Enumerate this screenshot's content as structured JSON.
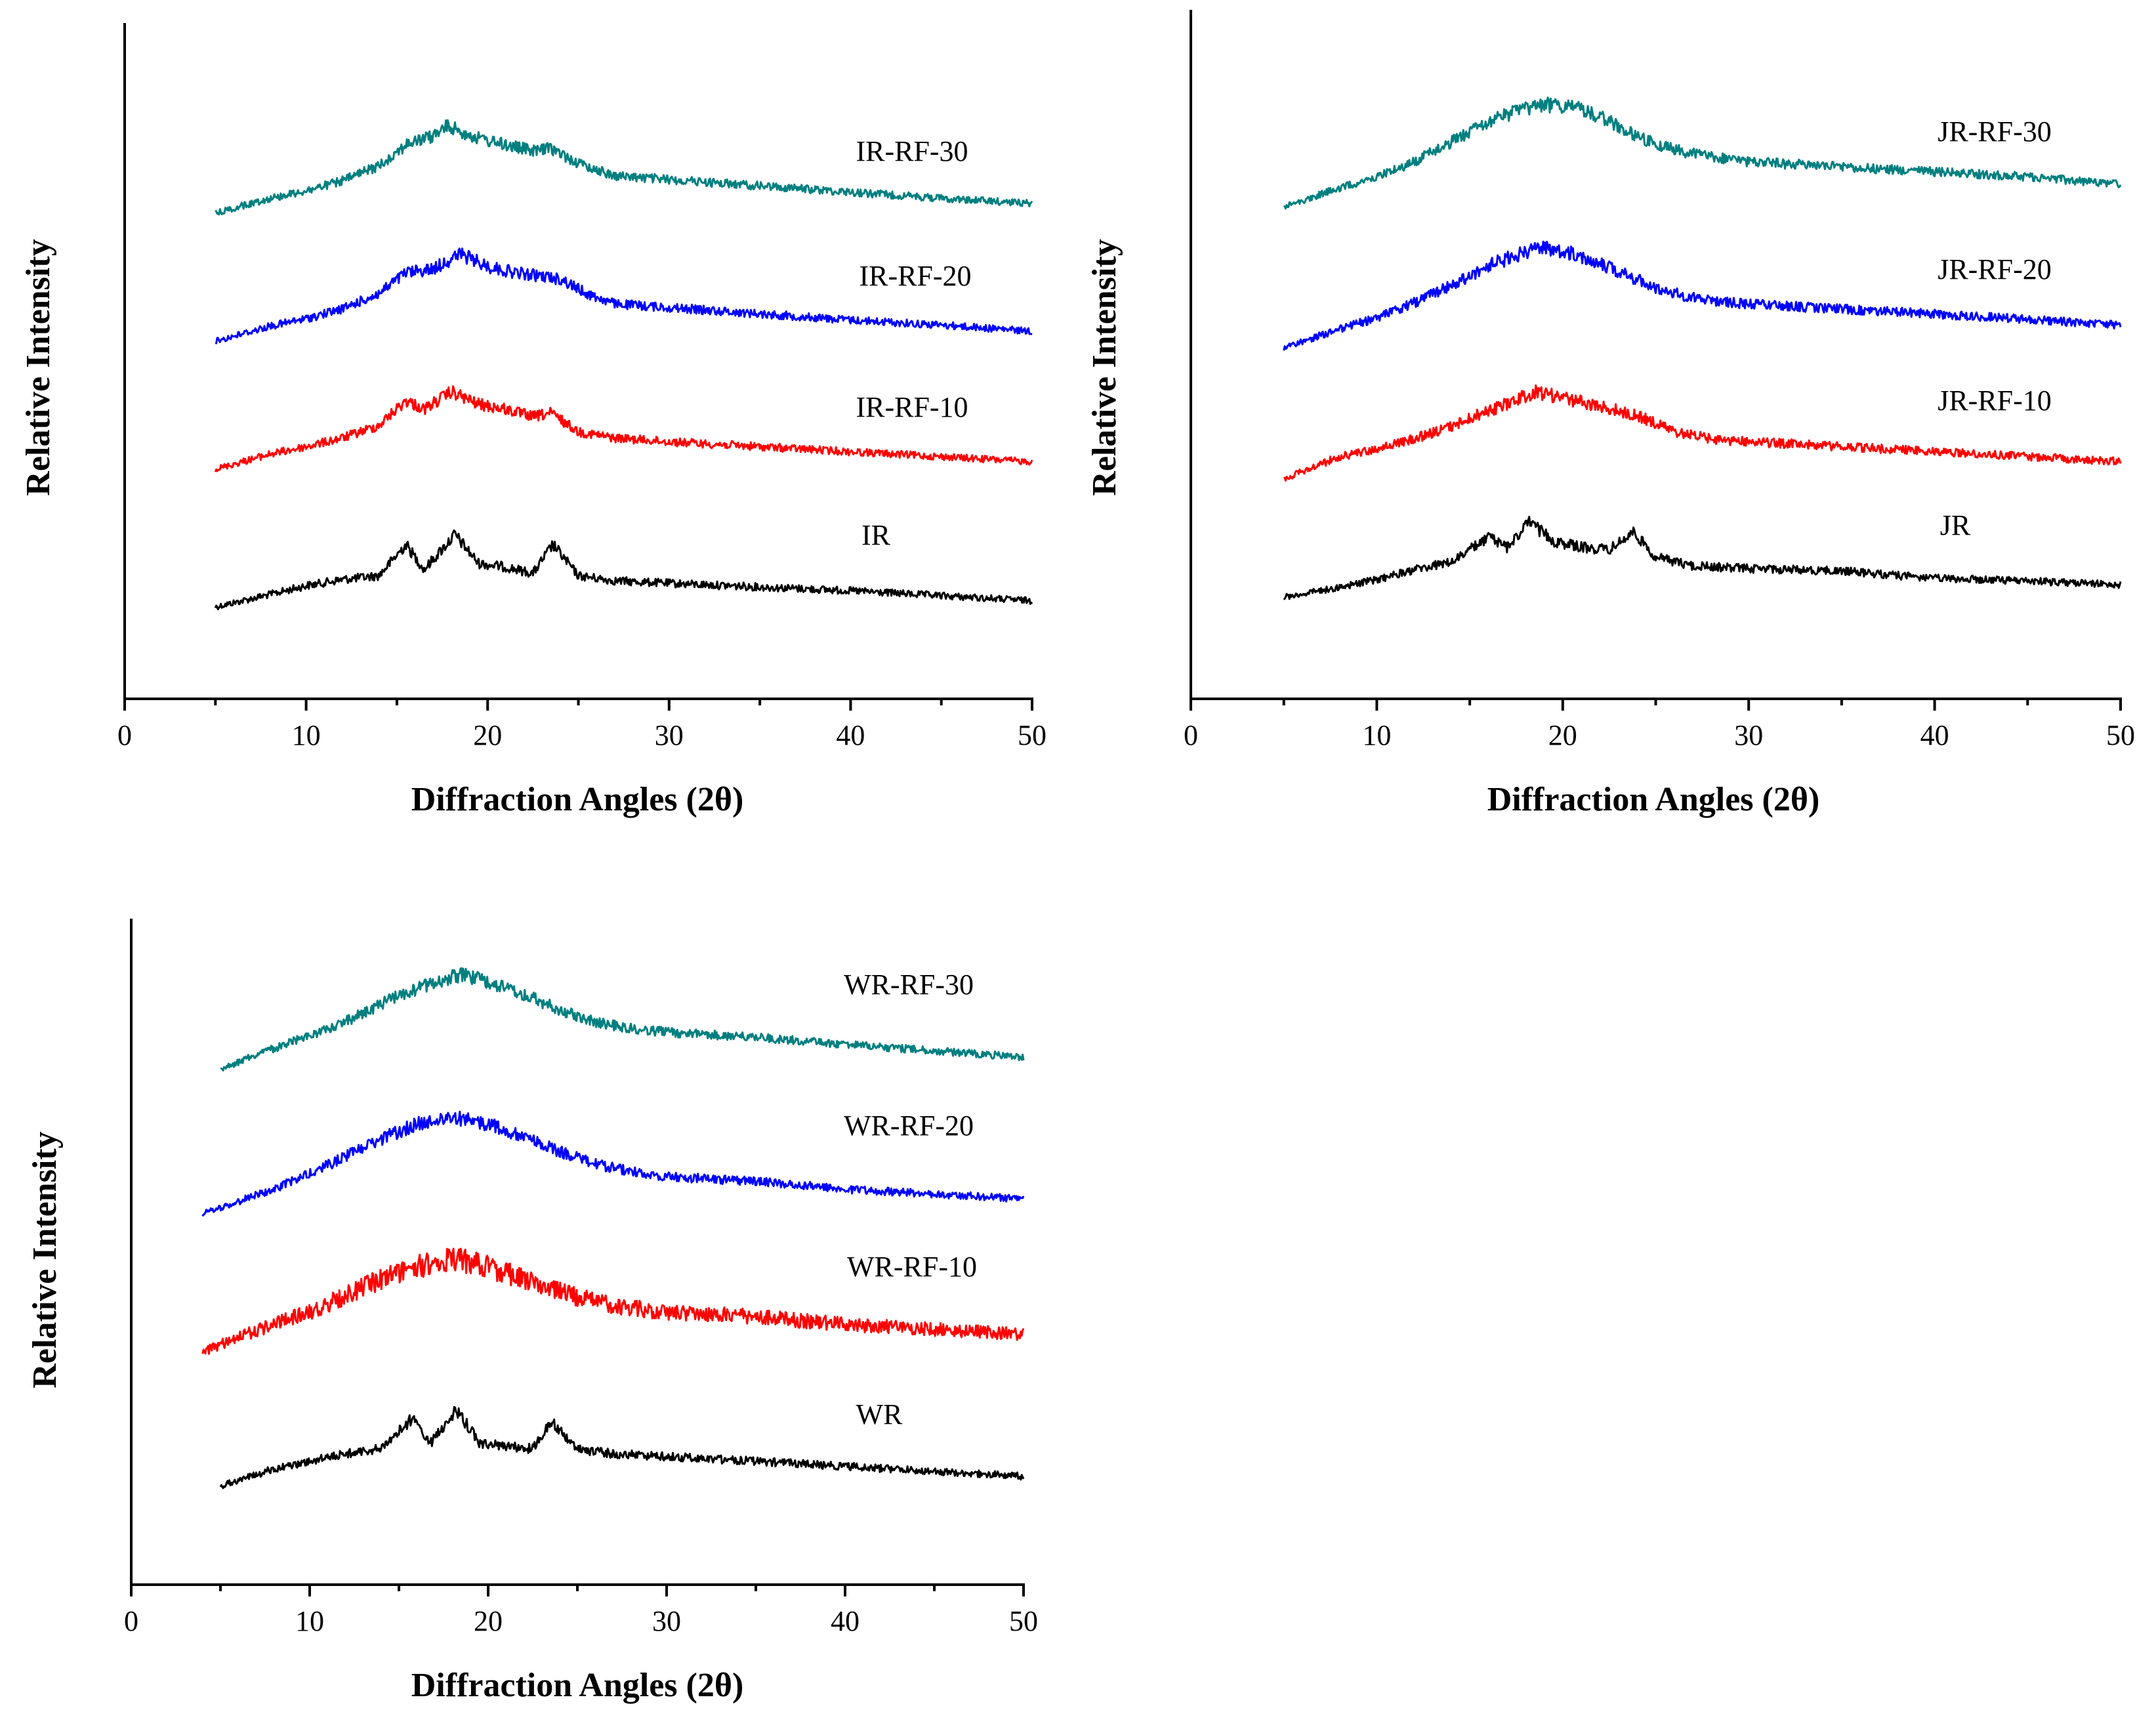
{
  "chart_data": [
    {
      "type": "line",
      "xlabel": "Diffraction Angles (2θ)",
      "ylabel": "Relative Intensity",
      "xlim": [
        0,
        50
      ],
      "xticks": [
        0,
        10,
        20,
        30,
        40,
        50
      ],
      "yticks": false,
      "grid": false,
      "legend": "inline labels",
      "series": [
        {
          "name": "IR",
          "color": "#000000",
          "x": [
            5,
            8,
            10,
            12,
            14,
            15.5,
            16.5,
            18.2,
            19.5,
            21,
            22.5,
            23.6,
            25,
            27,
            30,
            35,
            40,
            45,
            50
          ],
          "y": [
            0.0,
            0.1,
            0.17,
            0.22,
            0.25,
            0.5,
            0.3,
            0.58,
            0.35,
            0.32,
            0.27,
            0.5,
            0.25,
            0.21,
            0.19,
            0.16,
            0.13,
            0.09,
            0.05
          ]
        },
        {
          "name": "IR-RF-10",
          "color": "#ff0000",
          "x": [
            5,
            8,
            10,
            12,
            14,
            15.5,
            16.5,
            18,
            19.5,
            21,
            22.5,
            23.5,
            25,
            27,
            30,
            35,
            40,
            45,
            50
          ],
          "y": [
            0.0,
            0.12,
            0.18,
            0.25,
            0.35,
            0.55,
            0.48,
            0.62,
            0.52,
            0.48,
            0.42,
            0.45,
            0.3,
            0.25,
            0.22,
            0.18,
            0.14,
            0.1,
            0.06
          ]
        },
        {
          "name": "IR-RF-20",
          "color": "#0000ff",
          "x": [
            5,
            8,
            10,
            12,
            14,
            15.5,
            17,
            18.5,
            20,
            21.5,
            23,
            24,
            25.5,
            27,
            30,
            35,
            40,
            45,
            50
          ],
          "y": [
            0.0,
            0.12,
            0.18,
            0.26,
            0.38,
            0.55,
            0.58,
            0.7,
            0.6,
            0.55,
            0.52,
            0.5,
            0.38,
            0.3,
            0.27,
            0.22,
            0.17,
            0.13,
            0.08
          ]
        },
        {
          "name": "IR-RF-30",
          "color": "#007f7f",
          "x": [
            5,
            8,
            10,
            12,
            14,
            15.5,
            17,
            17.8,
            19.5,
            21,
            22.5,
            23.5,
            25,
            27,
            30,
            35,
            40,
            45,
            50
          ],
          "y": [
            0.0,
            0.12,
            0.18,
            0.26,
            0.38,
            0.55,
            0.62,
            0.7,
            0.6,
            0.55,
            0.5,
            0.52,
            0.4,
            0.3,
            0.27,
            0.22,
            0.17,
            0.12,
            0.08
          ]
        }
      ]
    },
    {
      "type": "line",
      "xlabel": "Diffraction Angles (2θ)",
      "ylabel": "Relative Intensity",
      "xlim": [
        0,
        50
      ],
      "xticks": [
        0,
        10,
        20,
        30,
        40,
        50
      ],
      "yticks": false,
      "grid": false,
      "legend": "inline labels",
      "series": [
        {
          "name": "JR",
          "color": "#000000",
          "x": [
            5,
            8,
            10,
            12,
            14,
            16,
            17,
            18.2,
            19.5,
            21,
            22.5,
            23.8,
            25,
            27,
            30,
            35,
            40,
            45,
            50
          ],
          "y": [
            0.0,
            0.08,
            0.14,
            0.22,
            0.28,
            0.48,
            0.4,
            0.6,
            0.45,
            0.4,
            0.38,
            0.52,
            0.32,
            0.25,
            0.23,
            0.21,
            0.15,
            0.13,
            0.1
          ]
        },
        {
          "name": "JR-RF-10",
          "color": "#ff0000",
          "x": [
            5,
            8,
            10,
            12,
            14,
            16,
            17,
            18.5,
            20,
            21.5,
            23,
            24.5,
            26,
            28,
            30,
            35,
            40,
            45,
            50
          ],
          "y": [
            0.0,
            0.18,
            0.24,
            0.32,
            0.42,
            0.55,
            0.6,
            0.7,
            0.65,
            0.6,
            0.55,
            0.48,
            0.38,
            0.32,
            0.3,
            0.26,
            0.22,
            0.18,
            0.14
          ]
        },
        {
          "name": "JR-RF-20",
          "color": "#0000ff",
          "x": [
            5,
            8,
            10,
            12,
            14,
            16,
            17.5,
            19,
            20.5,
            22,
            23.5,
            25,
            26.5,
            28,
            30,
            35,
            40,
            45,
            50
          ],
          "y": [
            0.0,
            0.15,
            0.24,
            0.36,
            0.5,
            0.66,
            0.74,
            0.8,
            0.76,
            0.68,
            0.58,
            0.48,
            0.42,
            0.38,
            0.35,
            0.31,
            0.27,
            0.23,
            0.18
          ]
        },
        {
          "name": "JR-RF-30",
          "color": "#007f7f",
          "x": [
            5,
            8,
            10,
            12,
            14,
            16,
            17.5,
            19,
            20.5,
            22,
            23.5,
            25,
            26.5,
            28,
            30,
            35,
            40,
            45,
            50
          ],
          "y": [
            0.0,
            0.15,
            0.24,
            0.36,
            0.52,
            0.68,
            0.76,
            0.82,
            0.8,
            0.72,
            0.6,
            0.5,
            0.44,
            0.4,
            0.36,
            0.32,
            0.28,
            0.24,
            0.18
          ]
        }
      ]
    },
    {
      "type": "line",
      "xlabel": "Diffraction Angles (2θ)",
      "ylabel": "Relative Intensity",
      "xlim": [
        0,
        50
      ],
      "xticks": [
        0,
        10,
        20,
        30,
        40,
        50
      ],
      "yticks": false,
      "grid": false,
      "legend": "inline labels",
      "series": [
        {
          "name": "WR",
          "color": "#000000",
          "x": [
            5,
            8,
            10,
            12,
            14,
            15.8,
            16.8,
            18.2,
            19.5,
            21,
            22.5,
            23.6,
            25,
            27,
            30,
            35,
            40,
            45,
            50
          ],
          "y": [
            0.0,
            0.14,
            0.2,
            0.26,
            0.3,
            0.55,
            0.35,
            0.62,
            0.35,
            0.32,
            0.3,
            0.52,
            0.3,
            0.26,
            0.24,
            0.2,
            0.16,
            0.12,
            0.08
          ]
        },
        {
          "name": "WR-RF-10",
          "color": "#ff0000",
          "x": [
            4,
            6,
            8,
            10,
            12,
            14,
            16,
            18,
            20,
            22,
            24,
            26,
            28,
            30,
            35,
            40,
            45,
            50
          ],
          "y": [
            0.0,
            0.12,
            0.22,
            0.32,
            0.45,
            0.58,
            0.68,
            0.75,
            0.68,
            0.58,
            0.48,
            0.4,
            0.35,
            0.32,
            0.28,
            0.22,
            0.18,
            0.14
          ]
        },
        {
          "name": "WR-RF-20",
          "color": "#0000ff",
          "x": [
            4,
            6,
            8,
            10,
            12,
            14,
            16,
            18,
            20,
            22,
            24,
            26,
            28,
            30,
            35,
            40,
            45,
            50
          ],
          "y": [
            0.0,
            0.1,
            0.2,
            0.32,
            0.46,
            0.6,
            0.72,
            0.78,
            0.72,
            0.62,
            0.5,
            0.4,
            0.34,
            0.3,
            0.26,
            0.2,
            0.16,
            0.12
          ]
        },
        {
          "name": "WR-RF-30",
          "color": "#007f7f",
          "x": [
            5,
            7,
            9,
            11,
            13,
            15,
            17,
            18.5,
            20,
            22,
            24,
            26,
            28,
            30,
            35,
            40,
            45,
            50
          ],
          "y": [
            0.0,
            0.12,
            0.22,
            0.32,
            0.45,
            0.6,
            0.7,
            0.76,
            0.7,
            0.6,
            0.48,
            0.38,
            0.33,
            0.3,
            0.26,
            0.2,
            0.15,
            0.1
          ]
        }
      ]
    }
  ]
}
